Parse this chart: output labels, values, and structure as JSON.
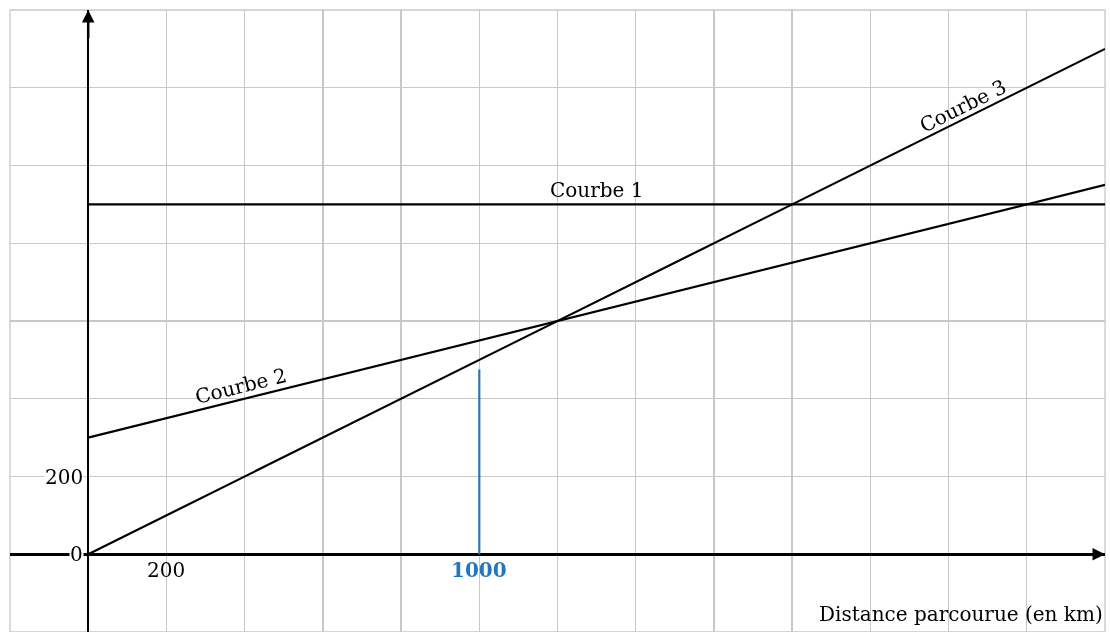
{
  "chart_data": {
    "type": "line",
    "xlabel": "Distance parcourue (en km)",
    "xlim": [
      -200,
      2600
    ],
    "ylim": [
      -200,
      1400
    ],
    "xticks": [
      {
        "value": -200,
        "label": null
      },
      {
        "value": 0,
        "label": null
      },
      {
        "value": 200,
        "label": "200"
      },
      {
        "value": 400,
        "label": null
      },
      {
        "value": 600,
        "label": null
      },
      {
        "value": 800,
        "label": null
      },
      {
        "value": 1000,
        "label": "1000"
      },
      {
        "value": 1200,
        "label": null
      },
      {
        "value": 1400,
        "label": null
      },
      {
        "value": 1600,
        "label": null
      },
      {
        "value": 1800,
        "label": null
      },
      {
        "value": 2000,
        "label": null
      },
      {
        "value": 2200,
        "label": null
      },
      {
        "value": 2400,
        "label": null
      },
      {
        "value": 2600,
        "label": null
      }
    ],
    "yticks": [
      {
        "value": -200,
        "label": null
      },
      {
        "value": 0,
        "label": "0"
      },
      {
        "value": 200,
        "label": "200"
      },
      {
        "value": 400,
        "label": null
      },
      {
        "value": 600,
        "label": null
      },
      {
        "value": 800,
        "label": null
      },
      {
        "value": 1000,
        "label": null
      },
      {
        "value": 1200,
        "label": null
      },
      {
        "value": 1400,
        "label": null
      }
    ],
    "grid": true,
    "legend": false,
    "marker": "none",
    "line_style": "solid",
    "series": [
      {
        "name": "Courbe 1",
        "color": "#000000",
        "x": [
          0,
          2600
        ],
        "values": [
          900,
          900
        ]
      },
      {
        "name": "Courbe 2",
        "color": "#000000",
        "x": [
          0,
          2600
        ],
        "values": [
          300,
          950
        ]
      },
      {
        "name": "Courbe 3",
        "color": "#000000",
        "x": [
          0,
          2600
        ],
        "values": [
          0,
          1300
        ]
      },
      {
        "color": "#2e75b6",
        "x": [
          1000,
          1000
        ],
        "values": [
          0,
          475
        ]
      }
    ]
  }
}
